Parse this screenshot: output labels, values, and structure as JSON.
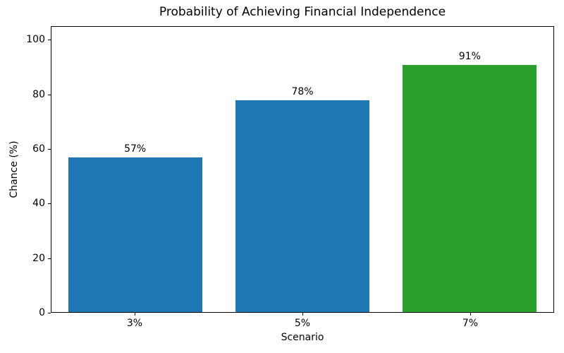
{
  "chart_data": {
    "type": "bar",
    "title": "Probability of Achieving Financial Independence",
    "xlabel": "Scenario",
    "ylabel": "Chance (%)",
    "categories": [
      "3%",
      "5%",
      "7%"
    ],
    "values": [
      57,
      78,
      91
    ],
    "bar_labels": [
      "57%",
      "78%",
      "91%"
    ],
    "bar_colors": [
      "#1f77b4",
      "#1f77b4",
      "#2ca02c"
    ],
    "ytick_values": [
      0,
      20,
      40,
      60,
      80,
      100
    ],
    "ytick_labels": [
      "0",
      "20",
      "40",
      "60",
      "80",
      "100"
    ],
    "ylim": [
      0,
      105
    ],
    "bar_width_fraction": 0.8,
    "grid": false,
    "legend": null,
    "spine_color": "#000000",
    "background_color": "#ffffff"
  }
}
